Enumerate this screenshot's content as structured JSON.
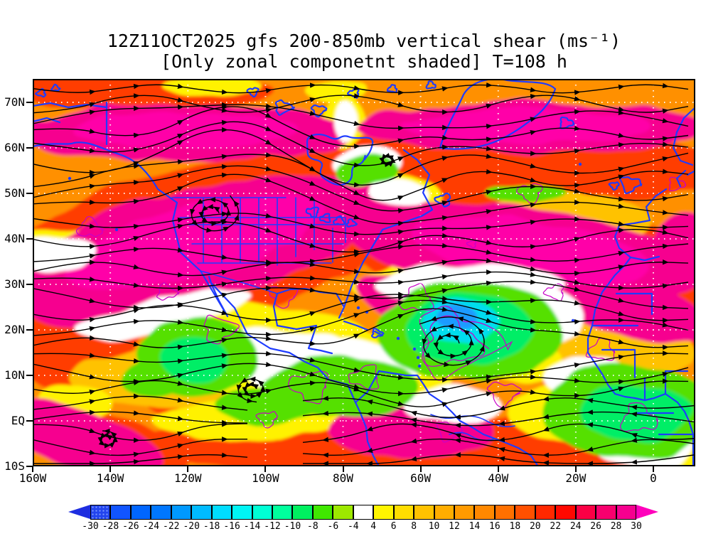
{
  "chart_title": {
    "line1": "12Z11OCT2025 gfs 200-850mb vertical shear (ms⁻¹)",
    "line2": "[Only zonal componetnt shaded] T=108 h"
  },
  "axes": {
    "lat_labels": [
      "70N",
      "60N",
      "50N",
      "40N",
      "30N",
      "20N",
      "10N",
      "EQ",
      "10S"
    ],
    "lon_labels": [
      "160W",
      "140W",
      "120W",
      "100W",
      "80W",
      "60W",
      "40W",
      "20W",
      "0"
    ]
  },
  "colorbar": {
    "ticks": [
      "-30",
      "-28",
      "-26",
      "-24",
      "-22",
      "-20",
      "-18",
      "-16",
      "-14",
      "-12",
      "-10",
      "-8",
      "-6",
      "-4",
      "4",
      "6",
      "8",
      "10",
      "12",
      "14",
      "16",
      "18",
      "20",
      "22",
      "24",
      "26",
      "28",
      "30"
    ],
    "colors": [
      "#1E2EE0",
      "#2244EE",
      "#1155FF",
      "#0066FF",
      "#0077FF",
      "#0099FF",
      "#00BBFF",
      "#00DDFF",
      "#00F5F5",
      "#00FFD5",
      "#00FF9D",
      "#00F060",
      "#40E800",
      "#9DE800",
      "#FFFFFF",
      "#FFF500",
      "#FFDD00",
      "#FFC200",
      "#FFAD00",
      "#FF9A00",
      "#FF8800",
      "#FF7000",
      "#FF5000",
      "#FF2800",
      "#FF0800",
      "#FB0045",
      "#F8006E",
      "#F6008F",
      "#FF00BB"
    ],
    "stippled_first_box": true
  },
  "chart_data": {
    "type": "heatmap",
    "title": "12Z11OCT2025 gfs 200-850mb vertical shear (ms-1)",
    "subtitle": "[Only zonal componetnt shaded] T=108 h",
    "model": "gfs",
    "run": "12Z11OCT2025",
    "forecast_hour": "T=108 h",
    "field": "200-850mb vertical wind shear, zonal component shaded",
    "units": "ms-1",
    "x_axis": {
      "tick_labels": [
        "160W",
        "140W",
        "120W",
        "100W",
        "80W",
        "60W",
        "40W",
        "20W",
        "0"
      ],
      "range_deg_lon": [
        -160,
        11
      ]
    },
    "y_axis": {
      "tick_labels": [
        "70N",
        "60N",
        "50N",
        "40N",
        "30N",
        "20N",
        "10N",
        "EQ",
        "10S"
      ],
      "range_deg_lat": [
        -10,
        75
      ]
    },
    "shading_levels": [
      -30,
      -28,
      -26,
      -24,
      -22,
      -20,
      -18,
      -16,
      -14,
      -12,
      -10,
      -8,
      -6,
      -4,
      4,
      6,
      8,
      10,
      12,
      14,
      16,
      18,
      20,
      22,
      24,
      26,
      28,
      30
    ],
    "legend_position": "bottom",
    "grid": "white dotted lat/lon grid every 10 deg lat, 20 deg lon",
    "overlays": [
      "black streamlines with arrowheads",
      "blue coastlines, lakes and political boundaries",
      "magenta shear contour lines",
      "white dotted graticule"
    ],
    "features": [
      {
        "region": "N Pacific / W North America 40-55N",
        "value": "26-30+ ms-1 magenta westerly shear band"
      },
      {
        "region": "N Atlantic jet 40-50N extending to Europe",
        "value": "26-30+ ms-1 magenta band"
      },
      {
        "region": "high-latitude band ~60-70N across map",
        "value": "24-30 ms-1 magenta/red band"
      },
      {
        "region": "cutoff low near 45N 115W",
        "value": "closed streamline circulation"
      },
      {
        "region": "tropical cyclone-like gyre near 18N 55W",
        "value": "-10 to -20 ms-1 easterly shear, cyan/green core, closed CCW streamlines"
      },
      {
        "region": "Mexico / Central America 10-25N",
        "value": "-4 to -10 ms-1 greens and near-zero whites"
      },
      {
        "region": "equatorial Africa / E Atlantic",
        "value": "-4 to -12 ms-1 green shading"
      },
      {
        "region": "NW Africa ~18-25N",
        "value": "24-30 ms-1 magenta band"
      },
      {
        "region": "tropics near equator",
        "value": "mixed 4-20 ms-1 orange/red with easterly arrows E half"
      }
    ]
  }
}
